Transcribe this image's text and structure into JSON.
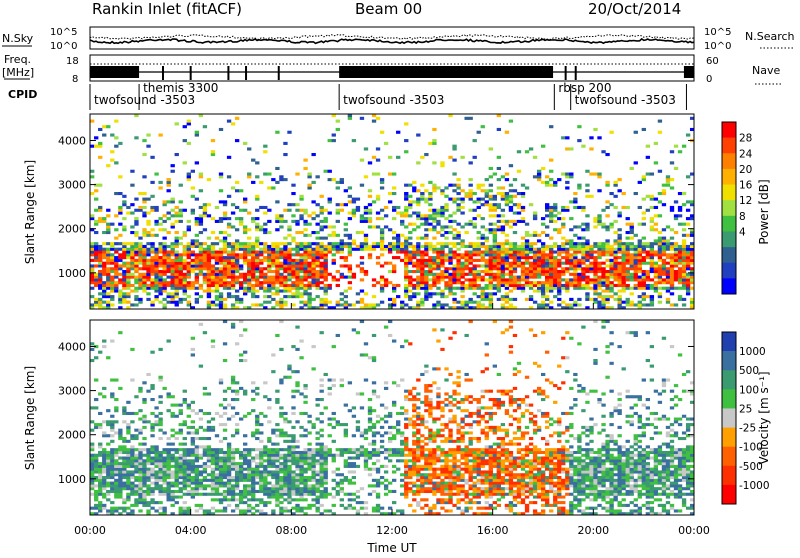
{
  "header": {
    "station": "Rankin Inlet (fitACF)",
    "beam": "Beam 00",
    "date": "20/Oct/2014"
  },
  "noise_panel": {
    "left_label": "N.Sky",
    "right_label": "N.Search",
    "left_ticks": [
      "10^5",
      "10^0"
    ],
    "right_ticks": [
      "10^5",
      "10^0"
    ]
  },
  "freq_panel": {
    "left_label_1": "Freq.",
    "left_label_2": "[MHz]",
    "left_ticks": [
      "18",
      "8"
    ],
    "right_label": "Nave",
    "right_ticks": [
      "60",
      "0"
    ]
  },
  "cpid": {
    "label": "CPID",
    "segments": [
      {
        "name": "twofsound -3503",
        "start": 0.0,
        "end": 1.95
      },
      {
        "name": "themis 3300",
        "start": 1.95,
        "end": 9.9
      },
      {
        "name": "twofsound -3503",
        "start": 9.9,
        "end": 18.45
      },
      {
        "name": "rbsp 200",
        "start": 18.45,
        "end": 19.1
      },
      {
        "name": "twofsound -3503",
        "start": 19.1,
        "end": 23.7
      }
    ]
  },
  "chart_data": [
    {
      "type": "heatmap",
      "name": "Power",
      "ylabel": "Slant Range [km]",
      "colorbar_label": "Power [dB]",
      "yticks": [
        1000,
        2000,
        3000,
        4000
      ],
      "ylim": [
        180,
        4600
      ],
      "xlim": [
        0,
        24
      ],
      "colorbar_ticks": [
        "28",
        "24",
        "20",
        "16",
        "12",
        "8",
        "4"
      ],
      "colorbar_colors": [
        "#ff0000",
        "#ff4000",
        "#ff8000",
        "#ffb000",
        "#f0e000",
        "#a0e040",
        "#40c040",
        "#3a9a70",
        "#306090",
        "#2040c0",
        "#0000ff"
      ]
    },
    {
      "type": "heatmap",
      "name": "Velocity",
      "ylabel": "Slant Range [km]",
      "xlabel": "Time UT",
      "colorbar_label": "Velocity [m s⁻¹]",
      "yticks": [
        1000,
        2000,
        3000,
        4000
      ],
      "ylim": [
        180,
        4600
      ],
      "xlim": [
        0,
        24
      ],
      "xticks": [
        "00:00",
        "04:00",
        "08:00",
        "12:00",
        "16:00",
        "20:00",
        "00:00"
      ],
      "colorbar_ticks": [
        "1000",
        "500",
        "100",
        "25",
        "-25",
        "-100",
        "-500",
        "-1000"
      ],
      "colorbar_colors": [
        "#2040b0",
        "#3a70a0",
        "#3a9a70",
        "#40c040",
        "#c8c8c8",
        "#ffa000",
        "#ff6000",
        "#ff3000",
        "#ff0000"
      ]
    }
  ]
}
